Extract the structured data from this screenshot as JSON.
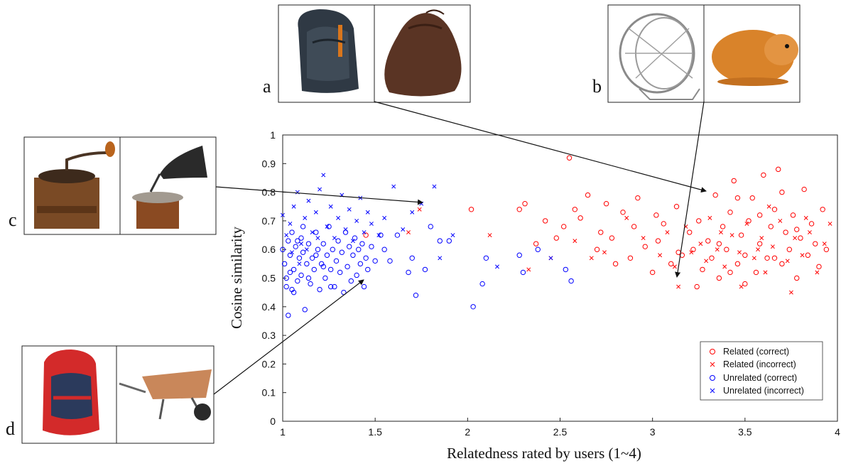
{
  "chart_data": {
    "type": "scatter",
    "xlabel": "Relatedness rated by users (1~4)",
    "ylabel": "Cosine similarity",
    "xlim": [
      1,
      4
    ],
    "ylim": [
      0,
      1
    ],
    "x_ticks": [
      "1",
      "1.5",
      "2",
      "2.5",
      "3",
      "3.5",
      "4"
    ],
    "y_ticks": [
      "0",
      "0.1",
      "0.2",
      "0.3",
      "0.4",
      "0.5",
      "0.6",
      "0.7",
      "0.8",
      "0.9",
      "1"
    ],
    "grid": false,
    "legend_position": "bottom-right",
    "series": [
      {
        "name": "Related (correct)",
        "marker": "circle",
        "color": "#ff0000",
        "points": [
          [
            1.45,
            0.65
          ],
          [
            2.02,
            0.74
          ],
          [
            2.28,
            0.74
          ],
          [
            2.31,
            0.76
          ],
          [
            2.37,
            0.62
          ],
          [
            2.42,
            0.7
          ],
          [
            2.48,
            0.64
          ],
          [
            2.52,
            0.68
          ],
          [
            2.55,
            0.92
          ],
          [
            2.58,
            0.74
          ],
          [
            2.61,
            0.71
          ],
          [
            2.65,
            0.79
          ],
          [
            2.7,
            0.6
          ],
          [
            2.72,
            0.66
          ],
          [
            2.75,
            0.76
          ],
          [
            2.78,
            0.64
          ],
          [
            2.8,
            0.55
          ],
          [
            2.84,
            0.73
          ],
          [
            2.88,
            0.57
          ],
          [
            2.92,
            0.78
          ],
          [
            2.96,
            0.61
          ],
          [
            3.0,
            0.52
          ],
          [
            3.03,
            0.63
          ],
          [
            3.06,
            0.69
          ],
          [
            3.1,
            0.55
          ],
          [
            3.13,
            0.75
          ],
          [
            3.16,
            0.58
          ],
          [
            3.2,
            0.66
          ],
          [
            3.22,
            0.6
          ],
          [
            3.25,
            0.7
          ],
          [
            3.27,
            0.53
          ],
          [
            3.3,
            0.63
          ],
          [
            3.32,
            0.57
          ],
          [
            3.34,
            0.79
          ],
          [
            3.36,
            0.5
          ],
          [
            3.38,
            0.68
          ],
          [
            3.4,
            0.6
          ],
          [
            3.42,
            0.73
          ],
          [
            3.44,
            0.84
          ],
          [
            3.46,
            0.55
          ],
          [
            3.48,
            0.65
          ],
          [
            3.5,
            0.58
          ],
          [
            3.52,
            0.7
          ],
          [
            3.54,
            0.78
          ],
          [
            3.56,
            0.52
          ],
          [
            3.58,
            0.62
          ],
          [
            3.6,
            0.86
          ],
          [
            3.62,
            0.57
          ],
          [
            3.64,
            0.68
          ],
          [
            3.66,
            0.74
          ],
          [
            3.68,
            0.88
          ],
          [
            3.7,
            0.55
          ],
          [
            3.72,
            0.66
          ],
          [
            3.74,
            0.6
          ],
          [
            3.76,
            0.72
          ],
          [
            3.78,
            0.5
          ],
          [
            3.8,
            0.64
          ],
          [
            3.82,
            0.81
          ],
          [
            3.84,
            0.58
          ],
          [
            3.86,
            0.69
          ],
          [
            3.88,
            0.62
          ],
          [
            3.9,
            0.54
          ],
          [
            3.92,
            0.74
          ],
          [
            3.94,
            0.6
          ],
          [
            3.5,
            0.48
          ],
          [
            3.24,
            0.47
          ],
          [
            3.58,
            0.72
          ],
          [
            3.46,
            0.78
          ],
          [
            3.7,
            0.8
          ],
          [
            3.36,
            0.62
          ],
          [
            3.14,
            0.59
          ],
          [
            3.02,
            0.72
          ],
          [
            2.9,
            0.68
          ],
          [
            3.66,
            0.57
          ],
          [
            3.78,
            0.67
          ],
          [
            3.42,
            0.52
          ]
        ]
      },
      {
        "name": "Related (incorrect)",
        "marker": "x",
        "color": "#ff0000",
        "points": [
          [
            1.68,
            0.66
          ],
          [
            1.74,
            0.74
          ],
          [
            2.12,
            0.65
          ],
          [
            2.33,
            0.53
          ],
          [
            2.45,
            0.57
          ],
          [
            2.58,
            0.63
          ],
          [
            2.67,
            0.57
          ],
          [
            2.74,
            0.59
          ],
          [
            2.86,
            0.71
          ],
          [
            2.95,
            0.64
          ],
          [
            3.04,
            0.58
          ],
          [
            3.08,
            0.66
          ],
          [
            3.12,
            0.54
          ],
          [
            3.14,
            0.47
          ],
          [
            3.18,
            0.68
          ],
          [
            3.21,
            0.59
          ],
          [
            3.26,
            0.62
          ],
          [
            3.29,
            0.56
          ],
          [
            3.31,
            0.71
          ],
          [
            3.35,
            0.6
          ],
          [
            3.39,
            0.54
          ],
          [
            3.43,
            0.65
          ],
          [
            3.47,
            0.59
          ],
          [
            3.51,
            0.69
          ],
          [
            3.55,
            0.57
          ],
          [
            3.59,
            0.64
          ],
          [
            3.61,
            0.52
          ],
          [
            3.65,
            0.61
          ],
          [
            3.69,
            0.7
          ],
          [
            3.73,
            0.56
          ],
          [
            3.77,
            0.64
          ],
          [
            3.81,
            0.58
          ],
          [
            3.85,
            0.66
          ],
          [
            3.89,
            0.52
          ],
          [
            3.93,
            0.62
          ],
          [
            3.96,
            0.69
          ],
          [
            3.48,
            0.47
          ],
          [
            3.63,
            0.75
          ],
          [
            3.75,
            0.45
          ],
          [
            3.57,
            0.6
          ],
          [
            3.37,
            0.66
          ],
          [
            3.83,
            0.71
          ]
        ]
      },
      {
        "name": "Unrelated (correct)",
        "marker": "circle",
        "color": "#0000ff",
        "points": [
          [
            1.0,
            0.6
          ],
          [
            1.01,
            0.55
          ],
          [
            1.02,
            0.5
          ],
          [
            1.03,
            0.63
          ],
          [
            1.03,
            0.37
          ],
          [
            1.04,
            0.58
          ],
          [
            1.05,
            0.46
          ],
          [
            1.05,
            0.66
          ],
          [
            1.06,
            0.53
          ],
          [
            1.07,
            0.61
          ],
          [
            1.08,
            0.49
          ],
          [
            1.09,
            0.57
          ],
          [
            1.1,
            0.64
          ],
          [
            1.1,
            0.51
          ],
          [
            1.11,
            0.59
          ],
          [
            1.12,
            0.39
          ],
          [
            1.13,
            0.55
          ],
          [
            1.14,
            0.62
          ],
          [
            1.15,
            0.48
          ],
          [
            1.16,
            0.57
          ],
          [
            1.17,
            0.53
          ],
          [
            1.18,
            0.66
          ],
          [
            1.19,
            0.6
          ],
          [
            1.2,
            0.46
          ],
          [
            1.21,
            0.55
          ],
          [
            1.22,
            0.62
          ],
          [
            1.23,
            0.5
          ],
          [
            1.24,
            0.58
          ],
          [
            1.25,
            0.68
          ],
          [
            1.26,
            0.53
          ],
          [
            1.27,
            0.6
          ],
          [
            1.28,
            0.47
          ],
          [
            1.29,
            0.56
          ],
          [
            1.3,
            0.63
          ],
          [
            1.31,
            0.52
          ],
          [
            1.32,
            0.59
          ],
          [
            1.33,
            0.45
          ],
          [
            1.34,
            0.66
          ],
          [
            1.35,
            0.54
          ],
          [
            1.36,
            0.61
          ],
          [
            1.37,
            0.49
          ],
          [
            1.38,
            0.58
          ],
          [
            1.39,
            0.64
          ],
          [
            1.4,
            0.51
          ],
          [
            1.41,
            0.6
          ],
          [
            1.42,
            0.55
          ],
          [
            1.43,
            0.62
          ],
          [
            1.44,
            0.47
          ],
          [
            1.45,
            0.57
          ],
          [
            1.46,
            0.53
          ],
          [
            1.48,
            0.61
          ],
          [
            1.5,
            0.56
          ],
          [
            1.53,
            0.65
          ],
          [
            1.55,
            0.6
          ],
          [
            1.58,
            0.56
          ],
          [
            1.62,
            0.65
          ],
          [
            1.68,
            0.52
          ],
          [
            1.7,
            0.57
          ],
          [
            1.72,
            0.44
          ],
          [
            1.77,
            0.53
          ],
          [
            1.8,
            0.68
          ],
          [
            1.85,
            0.63
          ],
          [
            1.9,
            0.63
          ],
          [
            2.03,
            0.4
          ],
          [
            2.08,
            0.48
          ],
          [
            2.1,
            0.57
          ],
          [
            2.28,
            0.58
          ],
          [
            2.3,
            0.52
          ],
          [
            2.38,
            0.6
          ],
          [
            2.53,
            0.53
          ],
          [
            2.56,
            0.49
          ],
          [
            1.02,
            0.47
          ],
          [
            1.04,
            0.52
          ],
          [
            1.06,
            0.45
          ],
          [
            1.08,
            0.63
          ],
          [
            1.11,
            0.68
          ],
          [
            1.14,
            0.5
          ],
          [
            1.18,
            0.58
          ],
          [
            1.22,
            0.54
          ],
          [
            1.26,
            0.47
          ]
        ]
      },
      {
        "name": "Unrelated (incorrect)",
        "marker": "x",
        "color": "#0000ff",
        "points": [
          [
            1.0,
            0.72
          ],
          [
            1.02,
            0.65
          ],
          [
            1.04,
            0.69
          ],
          [
            1.06,
            0.75
          ],
          [
            1.08,
            0.8
          ],
          [
            1.1,
            0.62
          ],
          [
            1.12,
            0.71
          ],
          [
            1.14,
            0.77
          ],
          [
            1.16,
            0.66
          ],
          [
            1.18,
            0.73
          ],
          [
            1.2,
            0.81
          ],
          [
            1.22,
            0.86
          ],
          [
            1.24,
            0.68
          ],
          [
            1.26,
            0.75
          ],
          [
            1.28,
            0.64
          ],
          [
            1.3,
            0.71
          ],
          [
            1.32,
            0.79
          ],
          [
            1.34,
            0.67
          ],
          [
            1.36,
            0.74
          ],
          [
            1.38,
            0.63
          ],
          [
            1.4,
            0.7
          ],
          [
            1.42,
            0.78
          ],
          [
            1.44,
            0.66
          ],
          [
            1.46,
            0.73
          ],
          [
            1.48,
            0.69
          ],
          [
            1.52,
            0.65
          ],
          [
            1.55,
            0.71
          ],
          [
            1.6,
            0.82
          ],
          [
            1.65,
            0.67
          ],
          [
            1.7,
            0.73
          ],
          [
            1.75,
            0.76
          ],
          [
            1.82,
            0.82
          ],
          [
            1.85,
            0.57
          ],
          [
            1.92,
            0.65
          ],
          [
            2.16,
            0.54
          ],
          [
            2.45,
            0.57
          ],
          [
            1.05,
            0.59
          ],
          [
            1.09,
            0.55
          ],
          [
            1.13,
            0.6
          ],
          [
            1.19,
            0.64
          ]
        ]
      }
    ],
    "annotations": [
      "a",
      "b",
      "c",
      "d"
    ]
  }
}
